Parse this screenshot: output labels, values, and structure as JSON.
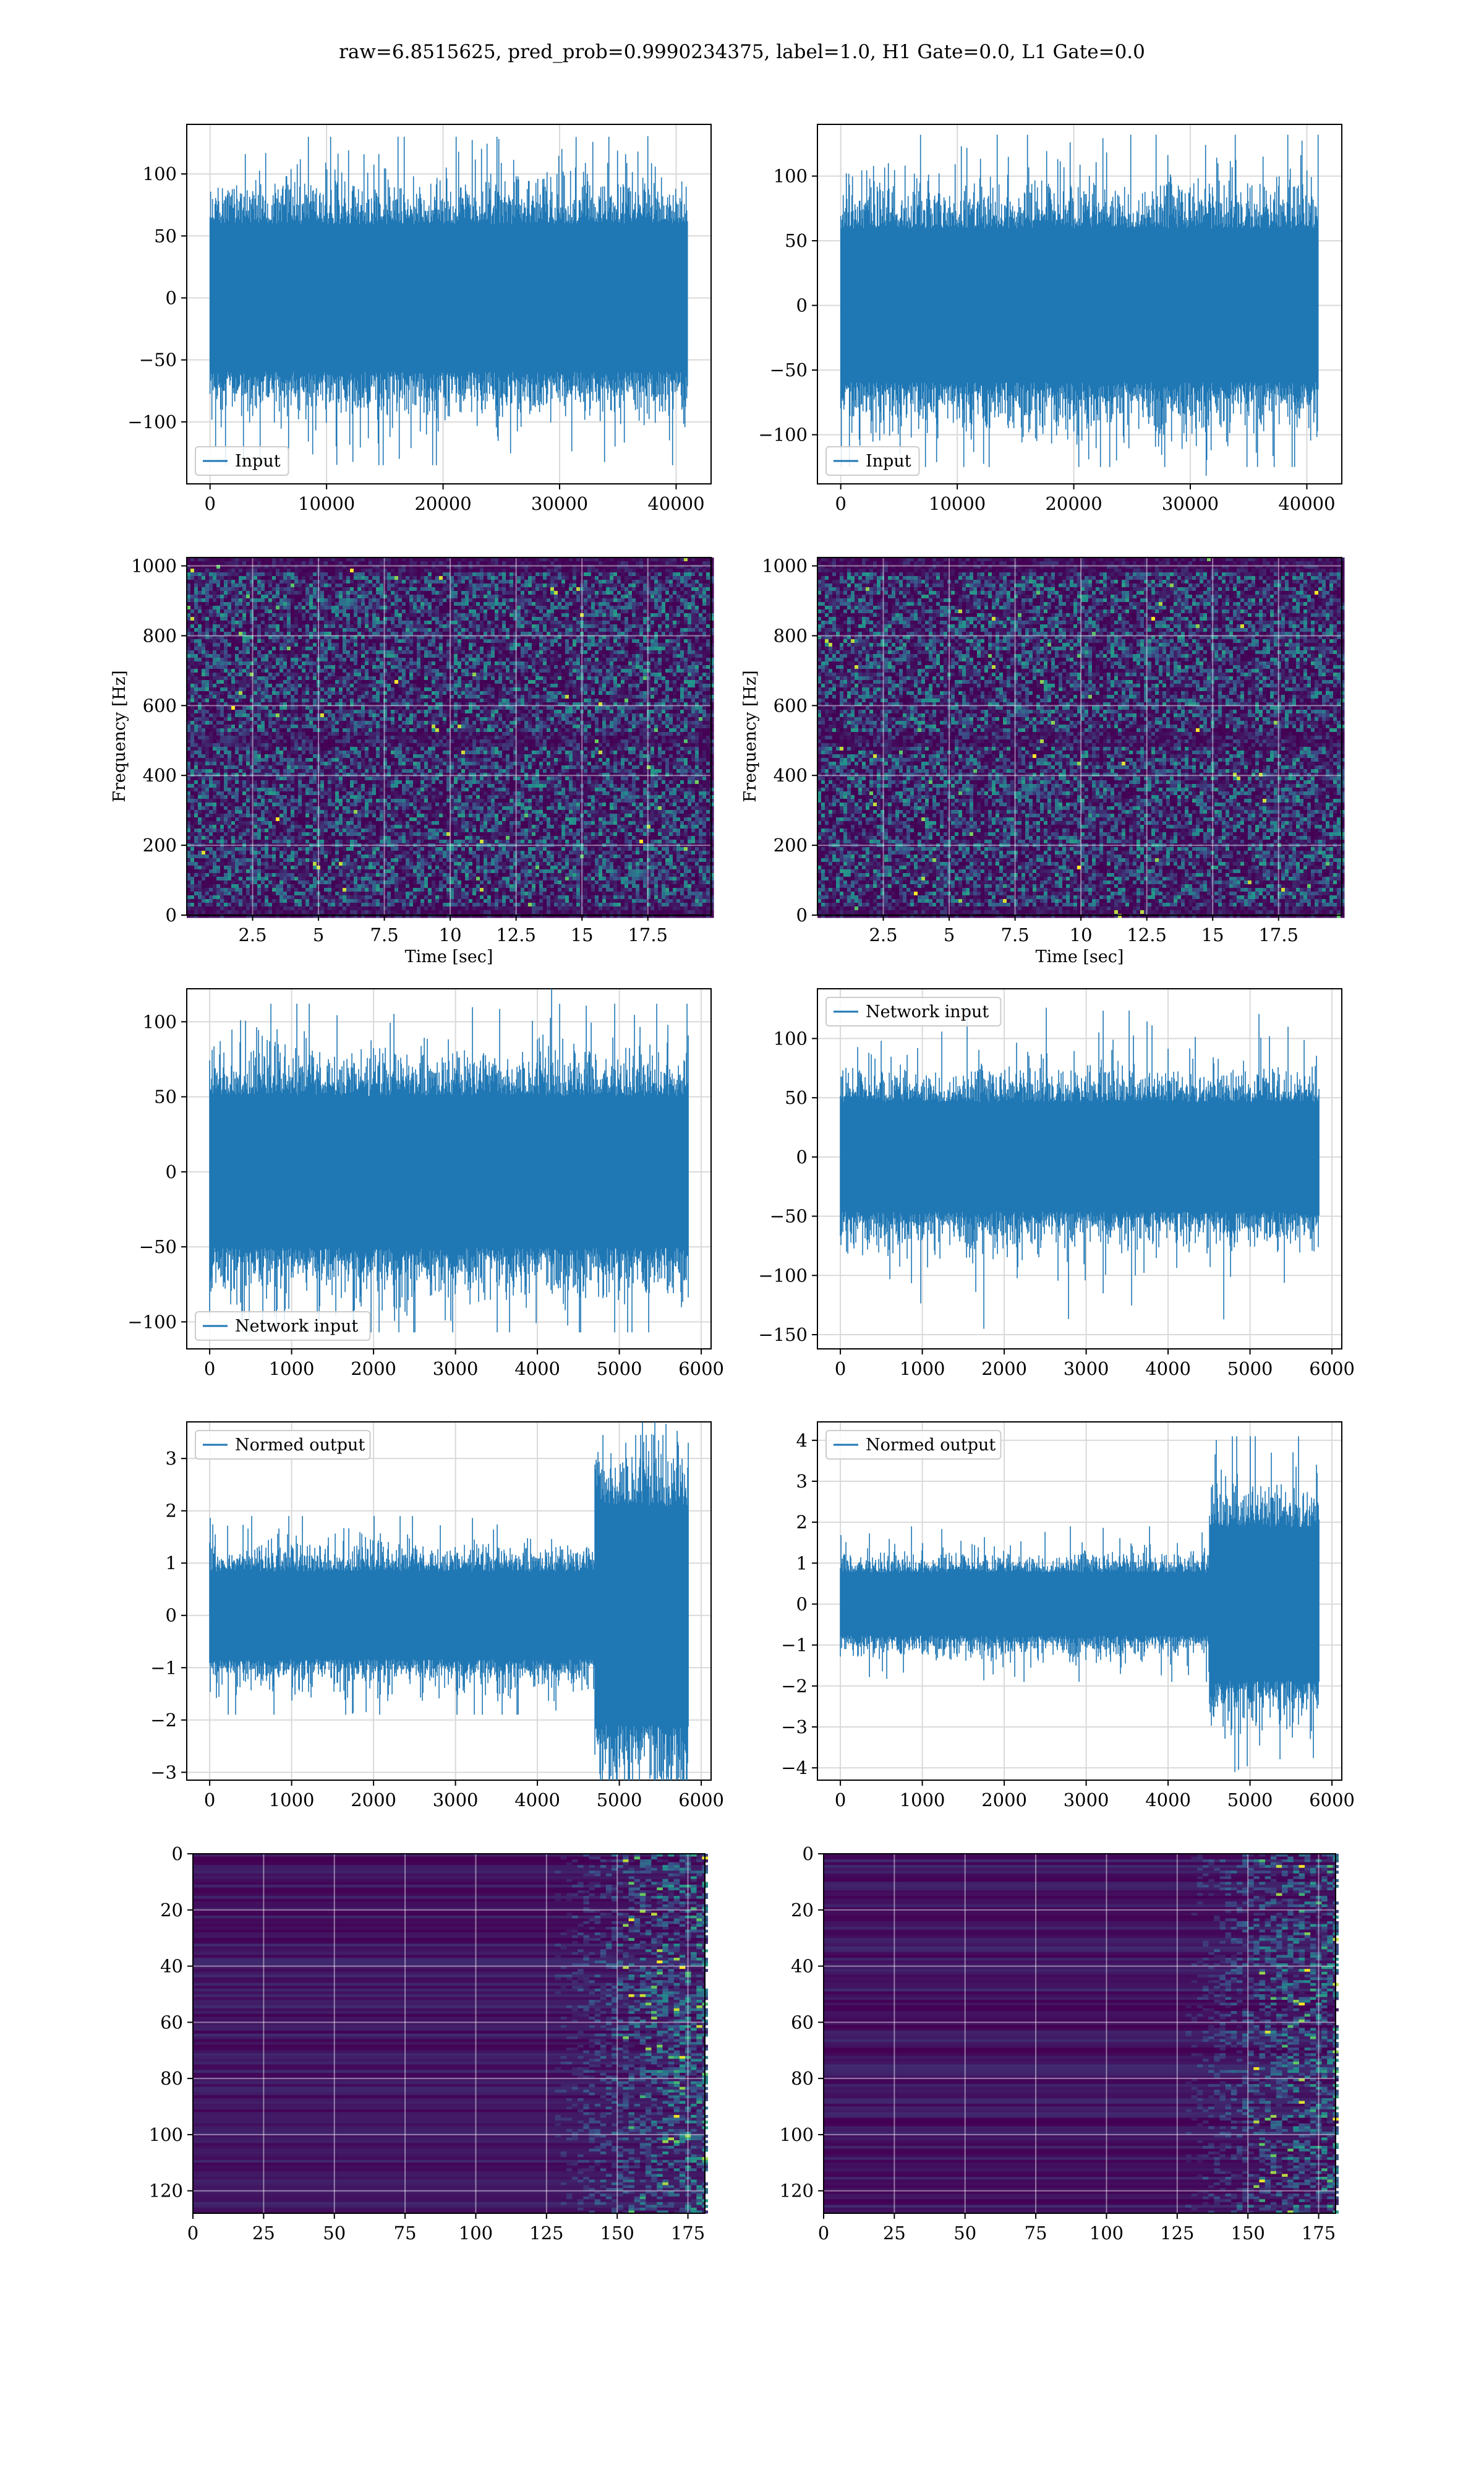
{
  "figure": {
    "suptitle": "raw=6.8515625, pred_prob=0.9990234375, label=1.0, H1 Gate=0.0, L1 Gate=0.0"
  },
  "colors": {
    "line": "#1f77b4",
    "grid": "#d9d9d9",
    "viridis_dark": "#440154"
  },
  "chart_data": [
    {
      "id": "r1c1",
      "type": "line",
      "legend": [
        "Input"
      ],
      "legend_loc": "lower-left",
      "xlim": [
        -2000,
        43000
      ],
      "ylim": [
        -150,
        140
      ],
      "xticks": [
        0,
        10000,
        20000,
        30000,
        40000
      ],
      "yticks": [
        -100,
        -50,
        0,
        50,
        100
      ],
      "x_range": [
        0,
        40960
      ],
      "noise": {
        "std": 27,
        "peak_max": 130,
        "peak_min": -135
      },
      "xlabel": "",
      "ylabel": "",
      "grid": true
    },
    {
      "id": "r1c2",
      "type": "line",
      "legend": [
        "Input"
      ],
      "legend_loc": "lower-left",
      "xlim": [
        -2000,
        43000
      ],
      "ylim": [
        -138,
        140
      ],
      "xticks": [
        0,
        10000,
        20000,
        30000,
        40000
      ],
      "yticks": [
        -100,
        -50,
        0,
        50,
        100
      ],
      "x_range": [
        0,
        40960
      ],
      "noise": {
        "std": 27,
        "peak_max": 132,
        "peak_min": -125
      },
      "xlabel": "",
      "ylabel": "",
      "grid": true
    },
    {
      "id": "r2c1",
      "type": "heatmap",
      "xlabel": "Time [sec]",
      "ylabel": "Frequency [Hz]",
      "xlim": [
        0,
        19.9
      ],
      "ylim": [
        0,
        1024
      ],
      "xticks": [
        2.5,
        5.0,
        7.5,
        10.0,
        12.5,
        15.0,
        17.5
      ],
      "yticks": [
        0,
        200,
        400,
        600,
        800,
        1000
      ],
      "colormap": "viridis",
      "grid": true,
      "note": "spectrogram of noise"
    },
    {
      "id": "r2c2",
      "type": "heatmap",
      "xlabel": "Time [sec]",
      "ylabel": "Frequency [Hz]",
      "xlim": [
        0,
        19.9
      ],
      "ylim": [
        0,
        1024
      ],
      "xticks": [
        2.5,
        5.0,
        7.5,
        10.0,
        12.5,
        15.0,
        17.5
      ],
      "yticks": [
        0,
        200,
        400,
        600,
        800,
        1000
      ],
      "colormap": "viridis",
      "grid": true
    },
    {
      "id": "r3c1",
      "type": "line",
      "legend": [
        "Network input"
      ],
      "legend_loc": "lower-left",
      "xlim": [
        -280,
        6120
      ],
      "ylim": [
        -118,
        122
      ],
      "xticks": [
        0,
        1000,
        2000,
        3000,
        4000,
        5000,
        6000
      ],
      "yticks": [
        -100,
        -50,
        0,
        50,
        100
      ],
      "x_range": [
        0,
        5840
      ],
      "noise": {
        "std": 23,
        "peak_max": 112,
        "peak_min": -107
      },
      "grid": true
    },
    {
      "id": "r3c2",
      "type": "line",
      "legend": [
        "Network input"
      ],
      "legend_loc": "upper-left",
      "xlim": [
        -280,
        6120
      ],
      "ylim": [
        -162,
        142
      ],
      "xticks": [
        0,
        1000,
        2000,
        3000,
        4000,
        5000,
        6000
      ],
      "yticks": [
        -150,
        -100,
        -50,
        0,
        50,
        100
      ],
      "x_range": [
        0,
        5840
      ],
      "noise": {
        "std": 21,
        "peak_max": 126,
        "peak_min": -148
      },
      "grid": true
    },
    {
      "id": "r4c1",
      "type": "line",
      "legend": [
        "Normed output"
      ],
      "legend_loc": "upper-left",
      "xlim": [
        -280,
        6120
      ],
      "ylim": [
        -3.15,
        3.7
      ],
      "xticks": [
        0,
        1000,
        2000,
        3000,
        4000,
        5000,
        6000
      ],
      "yticks": [
        -3,
        -2,
        -1,
        0,
        1,
        2,
        3
      ],
      "x_range": [
        0,
        5840
      ],
      "segments": [
        {
          "x0": 0,
          "x1": 4700,
          "std": 0.38,
          "peak": 1.9
        },
        {
          "x0": 4700,
          "x1": 5840,
          "std": 0.95,
          "peak": 3.45
        }
      ],
      "grid": true
    },
    {
      "id": "r4c2",
      "type": "line",
      "legend": [
        "Normed output"
      ],
      "legend_loc": "upper-left",
      "xlim": [
        -280,
        6120
      ],
      "ylim": [
        -4.3,
        4.45
      ],
      "xticks": [
        0,
        1000,
        2000,
        3000,
        4000,
        5000,
        6000
      ],
      "yticks": [
        -4,
        -3,
        -2,
        -1,
        0,
        1,
        2,
        3,
        4
      ],
      "x_range": [
        0,
        5840
      ],
      "segments": [
        {
          "x0": 0,
          "x1": 4500,
          "std": 0.35,
          "peak": 1.9
        },
        {
          "x0": 4500,
          "x1": 5840,
          "std": 0.85,
          "peak": 4.1
        }
      ],
      "grid": true
    },
    {
      "id": "r5c1",
      "type": "heatmap",
      "xlim": [
        0,
        181
      ],
      "ylim": [
        128,
        0
      ],
      "xticks": [
        0,
        25,
        50,
        75,
        100,
        125,
        150,
        175
      ],
      "yticks": [
        0,
        20,
        40,
        60,
        80,
        100,
        120
      ],
      "colormap": "viridis",
      "grid": true,
      "note": "activations concentrated at x > 150"
    },
    {
      "id": "r5c2",
      "type": "heatmap",
      "xlim": [
        0,
        181
      ],
      "ylim": [
        128,
        0
      ],
      "xticks": [
        0,
        25,
        50,
        75,
        100,
        125,
        150,
        175
      ],
      "yticks": [
        0,
        20,
        40,
        60,
        80,
        100,
        120
      ],
      "colormap": "viridis",
      "grid": true
    }
  ]
}
